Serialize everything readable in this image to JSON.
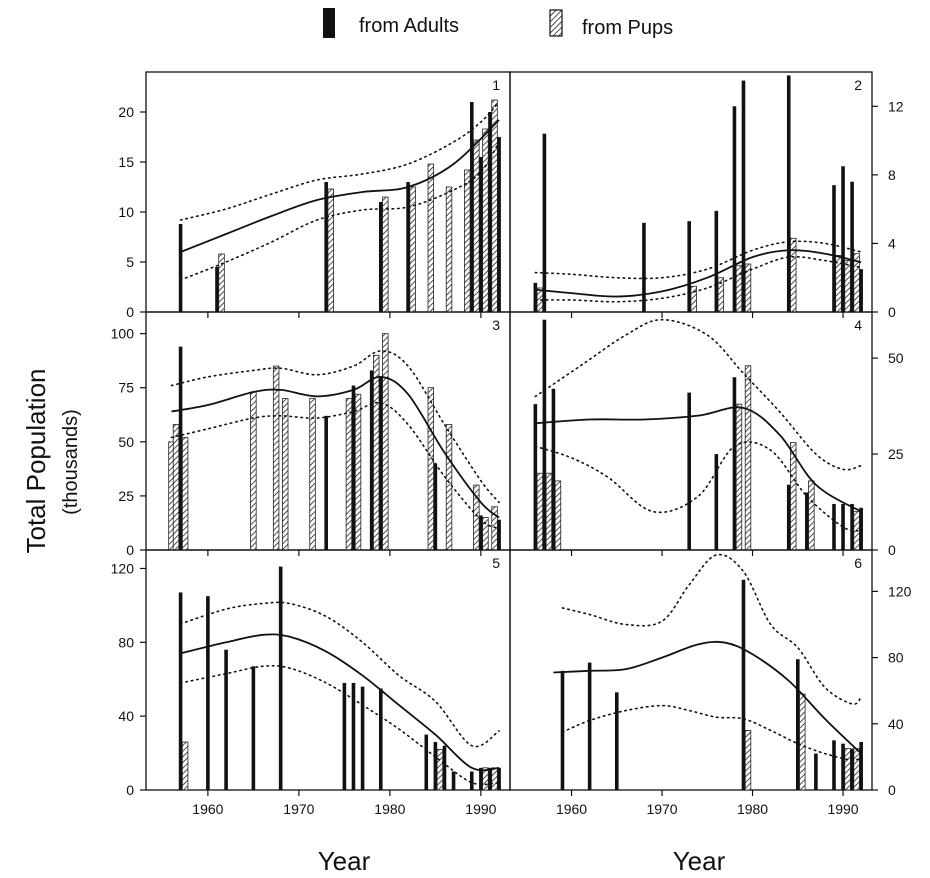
{
  "legend": {
    "adults_label": "from Adults",
    "pups_label": "from Pups"
  },
  "ylabel_main": "Total Population",
  "ylabel_sub": "(thousands)",
  "xlabel_left": "Year",
  "xlabel_right": "Year",
  "colors": {
    "adults": "#111111",
    "pups_fill": "#ffffff",
    "hatch": "#222222",
    "line": "#111111"
  },
  "chart_data": [
    {
      "type": "bar",
      "panel": "1",
      "ylim": [
        0,
        24
      ],
      "yticks": [
        0,
        5,
        10,
        15,
        20
      ],
      "yaxis_side": "left",
      "series": [
        {
          "name": "from Adults",
          "x": [
            1957,
            1961,
            1973,
            1979,
            1982,
            1989,
            1990,
            1991,
            1992
          ],
          "values": [
            8.8,
            4.5,
            13,
            11,
            13,
            21,
            15.5,
            20,
            17.5
          ]
        },
        {
          "name": "from Pups",
          "x": [
            1961.5,
            1973.5,
            1979.5,
            1982.5,
            1984.5,
            1986.5,
            1988.5,
            1989.5,
            1990.5,
            1991.5
          ],
          "values": [
            5.8,
            12.3,
            11.5,
            12.5,
            14.8,
            12.5,
            14.2,
            17.2,
            18.3,
            21.2
          ]
        }
      ],
      "trend": {
        "x": [
          1957,
          1962,
          1967,
          1972,
          1977,
          1982,
          1987,
          1992
        ],
        "y": [
          6,
          7.8,
          9.6,
          11.2,
          12,
          12.5,
          14.8,
          19.2
        ]
      },
      "ci_upper": {
        "x": [
          1957,
          1962,
          1967,
          1972,
          1977,
          1982,
          1987,
          1990,
          1992
        ],
        "y": [
          9.2,
          10.3,
          11.8,
          13.2,
          13.8,
          14.8,
          17,
          19,
          21
        ]
      },
      "ci_lower": {
        "x": [
          1957,
          1962,
          1967,
          1972,
          1977,
          1982,
          1987,
          1990,
          1992
        ],
        "y": [
          3.2,
          5,
          7,
          9.2,
          10.2,
          10.5,
          12.2,
          14,
          17
        ]
      }
    },
    {
      "type": "bar",
      "panel": "2",
      "ylim": [
        0,
        14
      ],
      "yticks": [
        0,
        4,
        8,
        12
      ],
      "yaxis_side": "right",
      "series": [
        {
          "name": "from Adults",
          "x": [
            1956,
            1957,
            1968,
            1973,
            1976,
            1978,
            1979,
            1984,
            1989,
            1990,
            1991,
            1992
          ],
          "values": [
            1.7,
            10.4,
            5.2,
            5.3,
            5.9,
            12,
            13.5,
            13.8,
            7.4,
            8.5,
            7.6,
            2.5
          ]
        },
        {
          "name": "from Pups",
          "x": [
            1956.5,
            1973.5,
            1976.5,
            1978.5,
            1979.5,
            1984.5,
            1989.5,
            1990.5,
            1991.5
          ],
          "values": [
            1.4,
            1.5,
            2,
            2.7,
            2.8,
            4.3,
            3.3,
            3,
            3.4
          ]
        }
      ],
      "trend": {
        "x": [
          1956,
          1960,
          1965,
          1970,
          1975,
          1980,
          1984,
          1988,
          1992
        ],
        "y": [
          1.3,
          1.1,
          0.9,
          1.2,
          2,
          3.2,
          3.6,
          3.4,
          2.9
        ]
      },
      "ci_upper": {
        "x": [
          1956,
          1960,
          1965,
          1970,
          1975,
          1980,
          1984,
          1988,
          1992
        ],
        "y": [
          2.3,
          2.2,
          2,
          2,
          2.5,
          3.6,
          4.1,
          4,
          3.5
        ]
      },
      "ci_lower": {
        "x": [
          1956,
          1960,
          1965,
          1970,
          1975,
          1980,
          1984,
          1988,
          1992
        ],
        "y": [
          0.7,
          0.7,
          0.6,
          0.8,
          1.4,
          2.5,
          3.2,
          3,
          2.6
        ]
      }
    },
    {
      "type": "bar",
      "panel": "3",
      "ylim": [
        0,
        110
      ],
      "yticks": [
        0,
        25,
        50,
        75,
        100
      ],
      "yaxis_side": "left",
      "series": [
        {
          "name": "from Adults",
          "x": [
            1957,
            1973,
            1976,
            1978,
            1979,
            1985,
            1990,
            1992
          ],
          "values": [
            94,
            62,
            76,
            83,
            80,
            40,
            16,
            14
          ]
        },
        {
          "name": "from Pups",
          "x": [
            1956,
            1956.5,
            1957.5,
            1965,
            1967.5,
            1968.5,
            1971.5,
            1975.5,
            1976.5,
            1978.5,
            1979.5,
            1984.5,
            1986.5,
            1989.5,
            1990.5,
            1991.5
          ],
          "values": [
            50,
            58,
            52,
            73,
            85,
            70,
            70,
            70,
            72,
            90,
            100,
            75,
            58,
            30,
            15,
            20
          ]
        }
      ],
      "trend": {
        "x": [
          1956,
          1960,
          1965,
          1968,
          1972,
          1976,
          1979,
          1982,
          1986,
          1990,
          1992
        ],
        "y": [
          64,
          67,
          73,
          74,
          71,
          74,
          80,
          72,
          45,
          22,
          15
        ]
      },
      "ci_upper": {
        "x": [
          1956,
          1960,
          1965,
          1968,
          1972,
          1976,
          1979,
          1982,
          1986,
          1990,
          1992
        ],
        "y": [
          76,
          80,
          83,
          84,
          81,
          85,
          92,
          85,
          58,
          32,
          22
        ]
      },
      "ci_lower": {
        "x": [
          1956,
          1960,
          1965,
          1968,
          1972,
          1976,
          1979,
          1982,
          1986,
          1990,
          1992
        ],
        "y": [
          52,
          56,
          61,
          62,
          61,
          64,
          68,
          58,
          34,
          14,
          10
        ]
      }
    },
    {
      "type": "bar",
      "panel": "4",
      "ylim": [
        0,
        62
      ],
      "yticks": [
        0,
        25,
        50
      ],
      "yaxis_side": "right",
      "series": [
        {
          "name": "from Adults",
          "x": [
            1956,
            1957,
            1958,
            1973,
            1976,
            1978,
            1984,
            1986,
            1989,
            1990,
            1991,
            1992
          ],
          "values": [
            38,
            60,
            42,
            41,
            25,
            45,
            17,
            15,
            12,
            12,
            12,
            11
          ]
        },
        {
          "name": "from Pups",
          "x": [
            1956.5,
            1957.5,
            1958.5,
            1978.5,
            1979.5,
            1984.5,
            1986.5,
            1991.5
          ],
          "values": [
            20,
            20,
            18,
            38,
            48,
            28,
            18,
            10
          ]
        }
      ],
      "trend": {
        "x": [
          1956,
          1962,
          1968,
          1974,
          1979,
          1983,
          1987,
          1992
        ],
        "y": [
          33,
          34,
          34,
          35,
          37,
          30,
          17,
          10
        ]
      },
      "ci_upper": {
        "x": [
          1956,
          1961,
          1966,
          1970,
          1975,
          1979,
          1983,
          1987,
          1990,
          1992
        ],
        "y": [
          40,
          48,
          56,
          60,
          56,
          46,
          36,
          25,
          21,
          22
        ]
      },
      "ci_lower": {
        "x": [
          1956,
          1960,
          1964,
          1969,
          1974,
          1978,
          1982,
          1986,
          1990,
          1992
        ],
        "y": [
          27,
          24,
          19,
          10,
          14,
          27,
          26,
          14,
          6,
          5
        ]
      }
    },
    {
      "type": "bar",
      "panel": "5",
      "ylim": [
        0,
        130
      ],
      "yticks": [
        0,
        40,
        80,
        120
      ],
      "yaxis_side": "left",
      "series": [
        {
          "name": "from Adults",
          "x": [
            1957,
            1960,
            1962,
            1965,
            1968,
            1975,
            1976,
            1977,
            1979,
            1984,
            1985,
            1986,
            1987,
            1989,
            1990,
            1991,
            1992
          ],
          "values": [
            107,
            105,
            76,
            67,
            121,
            58,
            58,
            56,
            55,
            30,
            26,
            24,
            10,
            10,
            12,
            12,
            12
          ]
        },
        {
          "name": "from Pups",
          "x": [
            1957.5,
            1985.5,
            1990.5,
            1991.5
          ],
          "values": [
            26,
            22,
            12,
            12
          ]
        }
      ],
      "trend": {
        "x": [
          1957,
          1962,
          1966,
          1969,
          1973,
          1977,
          1981,
          1985,
          1989,
          1992
        ],
        "y": [
          74,
          80,
          84,
          83,
          75,
          62,
          46,
          30,
          12,
          12
        ]
      },
      "ci_upper": {
        "x": [
          1957,
          1962,
          1966,
          1969,
          1973,
          1977,
          1981,
          1985,
          1989,
          1992
        ],
        "y": [
          90,
          98,
          101,
          101,
          94,
          80,
          62,
          48,
          24,
          32
        ]
      },
      "ci_lower": {
        "x": [
          1957,
          1962,
          1966,
          1969,
          1973,
          1977,
          1981,
          1985,
          1989,
          1992
        ],
        "y": [
          58,
          63,
          67,
          66,
          58,
          46,
          33,
          18,
          4,
          4
        ]
      }
    },
    {
      "type": "bar",
      "panel": "6",
      "ylim": [
        0,
        145
      ],
      "yticks": [
        0,
        40,
        80,
        120
      ],
      "yaxis_side": "right",
      "series": [
        {
          "name": "from Adults",
          "x": [
            1959,
            1962,
            1965,
            1979,
            1985,
            1987,
            1989,
            1990,
            1991,
            1992
          ],
          "values": [
            72,
            77,
            59,
            127,
            79,
            22,
            30,
            28,
            25,
            29
          ]
        },
        {
          "name": "from Pups",
          "x": [
            1979.5,
            1985.5,
            1990.5,
            1991.5
          ],
          "values": [
            36,
            58,
            25,
            25
          ]
        }
      ],
      "trend": {
        "x": [
          1958,
          1962,
          1966,
          1970,
          1974,
          1977,
          1980,
          1984,
          1988,
          1992
        ],
        "y": [
          71,
          72,
          73,
          80,
          88,
          89,
          82,
          66,
          43,
          22
        ]
      },
      "ci_upper": {
        "x": [
          1959,
          1962,
          1966,
          1970,
          1973,
          1976,
          1979,
          1982,
          1985,
          1988,
          1991,
          1992
        ],
        "y": [
          110,
          106,
          100,
          102,
          124,
          142,
          132,
          100,
          86,
          62,
          52,
          56
        ]
      },
      "ci_lower": {
        "x": [
          1959,
          1962,
          1966,
          1970,
          1973,
          1976,
          1979,
          1982,
          1985,
          1988,
          1991,
          1992
        ],
        "y": [
          35,
          42,
          48,
          51,
          48,
          44,
          43,
          36,
          28,
          22,
          18,
          20
        ]
      }
    }
  ]
}
